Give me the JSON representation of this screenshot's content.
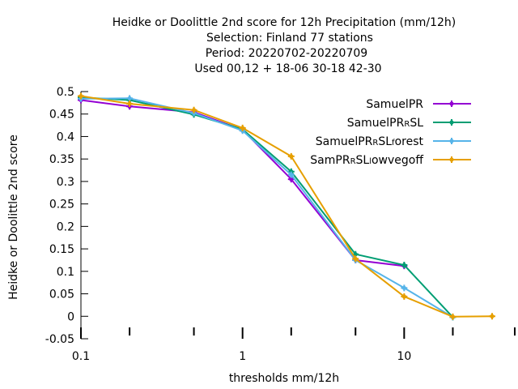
{
  "chart_data": {
    "type": "line",
    "title_lines": [
      "Heidke or Doolittle 2nd score  for 12h Precipitation (mm/12h)",
      "Selection: Finland     77 stations",
      "Period: 20220702-20220709",
      "Used  00,12  + 18-06 30-18 42-30"
    ],
    "xlabel": "thresholds mm/12h",
    "ylabel": "Heidke or Doolittle 2nd score",
    "x_scale": "log",
    "xlim": [
      0.1,
      35
    ],
    "ylim": [
      -0.05,
      0.5
    ],
    "x_ticks": [
      {
        "value": 0.1,
        "label": "0.1"
      },
      {
        "value": 1,
        "label": "1"
      },
      {
        "value": 10,
        "label": "10"
      }
    ],
    "x_minor_ticks": [
      0.2,
      0.5,
      2,
      5,
      20,
      50
    ],
    "y_ticks": [
      {
        "value": 0.5,
        "label": "0.5"
      },
      {
        "value": 0.45,
        "label": "0.45"
      },
      {
        "value": 0.4,
        "label": "0.4"
      },
      {
        "value": 0.35,
        "label": "0.35"
      },
      {
        "value": 0.3,
        "label": "0.3"
      },
      {
        "value": 0.25,
        "label": "0.25"
      },
      {
        "value": 0.2,
        "label": "0.2"
      },
      {
        "value": 0.15,
        "label": "0.15"
      },
      {
        "value": 0.1,
        "label": "0.1"
      },
      {
        "value": 0.05,
        "label": "0.05"
      },
      {
        "value": 0,
        "label": "0"
      },
      {
        "value": -0.05,
        "label": "-0.05"
      }
    ],
    "grid": false,
    "legend_position": "top-right",
    "series": [
      {
        "name": "SamuelPR",
        "legend_parts": [
          {
            "t": "SamuelPR",
            "sub": false
          }
        ],
        "color": "#9400d3",
        "x": [
          0.1,
          0.2,
          0.5,
          1,
          2,
          5,
          10
        ],
        "y": [
          0.481,
          0.467,
          0.454,
          0.415,
          0.305,
          0.125,
          0.112
        ]
      },
      {
        "name": "SamuelPR_RSL",
        "legend_parts": [
          {
            "t": "SamuelPR",
            "sub": false
          },
          {
            "t": "R",
            "sub": true
          },
          {
            "t": "SL",
            "sub": false
          }
        ],
        "color": "#009e73",
        "x": [
          0.1,
          0.2,
          0.5,
          1,
          2,
          5,
          10,
          20
        ],
        "y": [
          0.487,
          0.481,
          0.449,
          0.416,
          0.322,
          0.138,
          0.114,
          -0.002
        ]
      },
      {
        "name": "SamuelPR_RSL_forest",
        "legend_parts": [
          {
            "t": "SamuelPR",
            "sub": false
          },
          {
            "t": "R",
            "sub": true
          },
          {
            "t": "SL",
            "sub": false
          },
          {
            "t": "f",
            "sub": true
          },
          {
            "t": "orest",
            "sub": false
          }
        ],
        "color": "#56b4e9",
        "x": [
          0.1,
          0.2,
          0.5,
          1,
          2,
          5,
          10,
          20
        ],
        "y": [
          0.484,
          0.485,
          0.452,
          0.413,
          0.315,
          0.125,
          0.063,
          -0.002
        ]
      },
      {
        "name": "SamPR_RSL_lowvegoff",
        "legend_parts": [
          {
            "t": "SamPR",
            "sub": false
          },
          {
            "t": "R",
            "sub": true
          },
          {
            "t": "SL",
            "sub": false
          },
          {
            "t": "l",
            "sub": true
          },
          {
            "t": "owvegoff",
            "sub": false
          }
        ],
        "color": "#e69f00",
        "x": [
          0.1,
          0.2,
          0.5,
          1,
          2,
          5,
          10,
          20,
          35
        ],
        "y": [
          0.49,
          0.473,
          0.459,
          0.419,
          0.356,
          0.128,
          0.044,
          -0.001,
          0.0
        ]
      }
    ]
  }
}
